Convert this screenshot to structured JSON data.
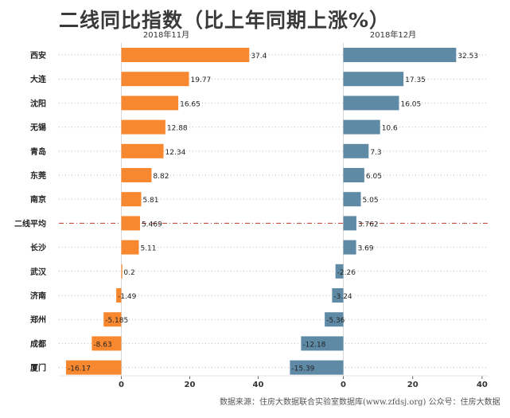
{
  "title": "二线同比指数（比上年同期上涨%）",
  "footer": "数据来源：住房大数据联合实验室数据库(www.zfdsj.org) 公众号：住房大数据",
  "colors": {
    "left_bar": "#f7882f",
    "right_bar": "#5f8aa6",
    "highlight_line": "#c0392b",
    "dotted": "#bdbdbd"
  },
  "chart_data": [
    {
      "type": "bar",
      "orientation": "horizontal",
      "subtitle": "2018年11月",
      "categories": [
        "西安",
        "大连",
        "沈阳",
        "无锡",
        "青岛",
        "东莞",
        "南京",
        "二线平均",
        "长沙",
        "武汉",
        "济南",
        "郑州",
        "成都",
        "厦门"
      ],
      "values": [
        37.4,
        19.77,
        16.65,
        12.88,
        12.34,
        8.82,
        5.81,
        5.469,
        5.11,
        0.2,
        -1.49,
        -5.185,
        -8.63,
        -16.17
      ],
      "data_labels": [
        "37.4",
        "19.77",
        "16.65",
        "12.88",
        "12.34",
        "8.82",
        "5.81",
        "5.469",
        "5.11",
        "0.2",
        "-1.49",
        "-5.185",
        "-8.63",
        "-16.17"
      ],
      "highlight_category": "二线平均",
      "xlim": [
        -16.7,
        50
      ],
      "xticks": [
        0,
        20,
        40
      ],
      "tick_labels": [
        "0",
        "20",
        "40"
      ],
      "grid": "dotted row lines"
    },
    {
      "type": "bar",
      "orientation": "horizontal",
      "subtitle": "2018年12月",
      "categories": [
        "西安",
        "大连",
        "沈阳",
        "无锡",
        "青岛",
        "东莞",
        "南京",
        "二线平均",
        "长沙",
        "武汉",
        "济南",
        "郑州",
        "成都",
        "厦门"
      ],
      "values": [
        32.53,
        17.35,
        16.05,
        10.6,
        7.3,
        6.05,
        5.05,
        3.762,
        3.69,
        -2.26,
        -3.24,
        -5.36,
        -12.18,
        -15.39
      ],
      "data_labels": [
        "32.53",
        "17.35",
        "16.05",
        "10.6",
        "7.3",
        "6.05",
        "5.05",
        "3.762",
        "3.69",
        "-2.26",
        "-3.24",
        "-5.36",
        "-12.18",
        "-15.39"
      ],
      "highlight_category": "二线平均",
      "xlim": [
        -15.9,
        40.5
      ],
      "xticks": [
        0,
        20,
        40
      ],
      "tick_labels": [
        "0",
        "20",
        "40"
      ],
      "grid": "dotted row lines"
    }
  ]
}
